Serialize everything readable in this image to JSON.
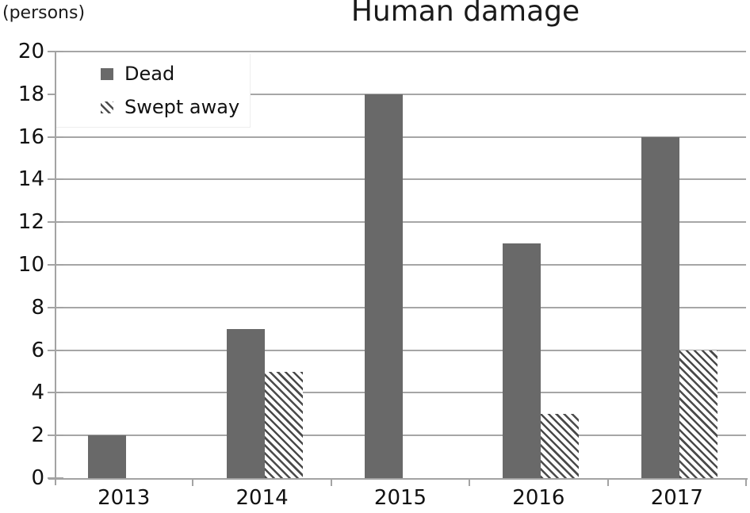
{
  "header": {
    "title": "Human damage",
    "unit_label": "(persons)"
  },
  "legend": {
    "position": "top-left",
    "items": [
      {
        "label": "Dead",
        "swatch": "solid-square"
      },
      {
        "label": "Swept away",
        "swatch": "hatched-square"
      }
    ]
  },
  "chart_data": {
    "type": "bar",
    "title": "Human damage",
    "ylabel": "(persons)",
    "xlabel": "",
    "categories": [
      "2013",
      "2014",
      "2015",
      "2016",
      "2017"
    ],
    "series": [
      {
        "name": "Dead",
        "pattern": "solid",
        "values": [
          2,
          7,
          18,
          11,
          16
        ]
      },
      {
        "name": "Swept away",
        "pattern": "diagonal-hatch",
        "values": [
          0,
          5,
          0,
          3,
          6
        ]
      }
    ],
    "ylim": [
      0,
      20
    ],
    "ytick_step": 2,
    "grid": true,
    "legend_position": "top-left"
  },
  "colors": {
    "bar_solid": "#696969",
    "hatch_stripe": "#4a4a4a",
    "hatch_background": "#ffffff",
    "gridline": "#a6a6a6",
    "axis": "#a3a3a3",
    "text": "#111111",
    "background": "#ffffff"
  }
}
